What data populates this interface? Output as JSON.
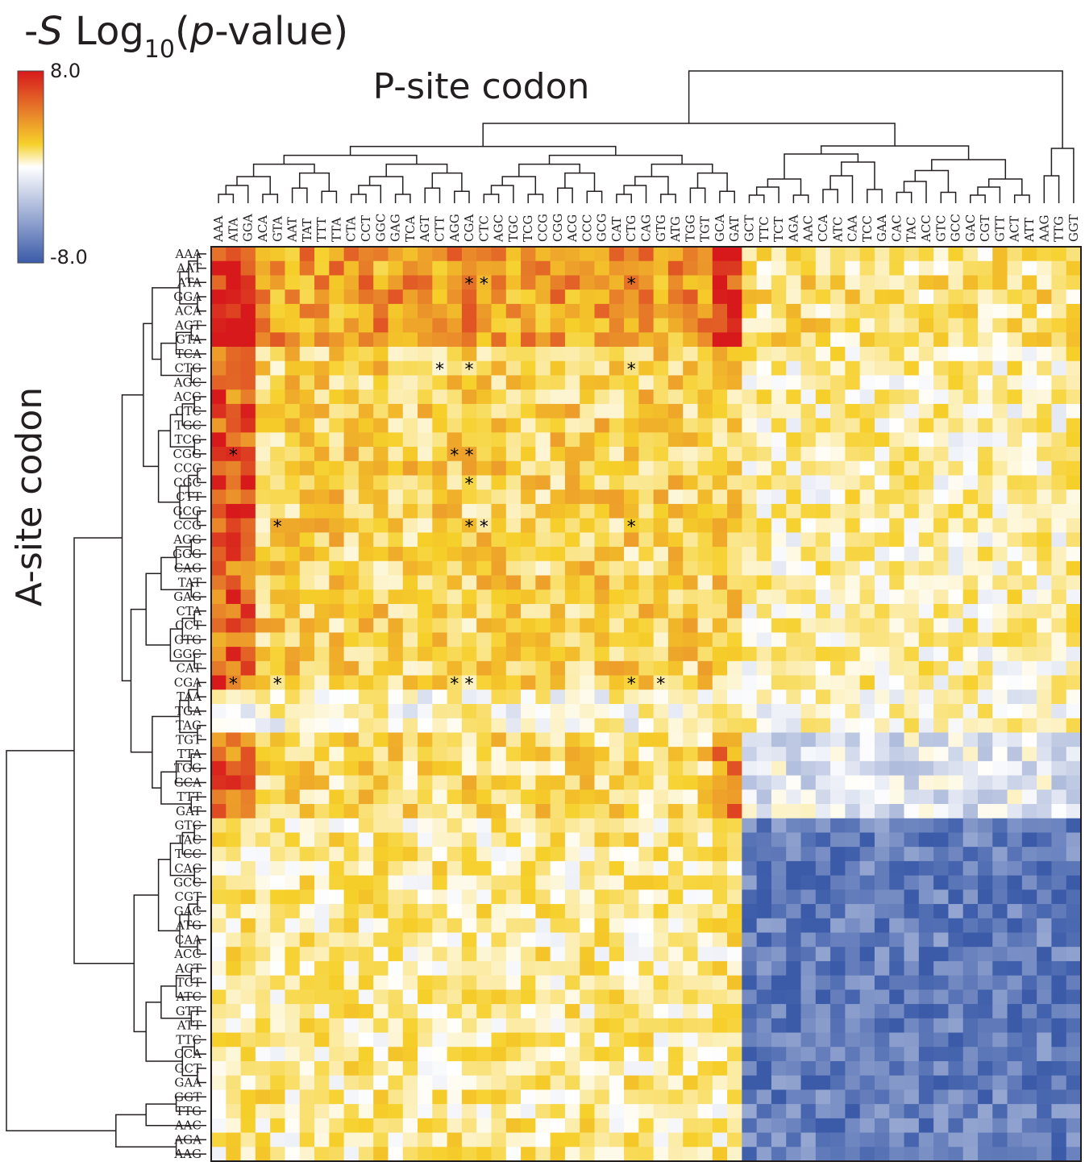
{
  "chart_data": {
    "type": "heatmap",
    "title": {
      "prefix": "-",
      "italic_s": "S",
      "log": " Log",
      "sub": "10",
      "open": "(",
      "italic_p": "p",
      "rest": "-value)"
    },
    "xlabel": "P-site codon",
    "ylabel": "A-site codon",
    "colorbar": {
      "max_label": "8.0",
      "min_label": "-8.0",
      "range": [
        -8,
        8
      ],
      "colors": {
        "high": "#d7191c",
        "orange": "#e8832a",
        "yellow": "#f6d02a",
        "mid": "#ffffff",
        "low": "#3b5ba9"
      }
    },
    "columns": [
      "AAA",
      "ATA",
      "GGA",
      "ACA",
      "GTA",
      "AAT",
      "TAT",
      "TTT",
      "TTA",
      "CTA",
      "CCT",
      "GGC",
      "GAG",
      "TCA",
      "AGT",
      "CTT",
      "AGG",
      "CGA",
      "CTC",
      "AGC",
      "TGC",
      "TCG",
      "CCG",
      "CGG",
      "ACG",
      "CCC",
      "GCG",
      "CAT",
      "CTG",
      "CAG",
      "GTG",
      "ATG",
      "TGG",
      "TGT",
      "GCA",
      "GAT",
      "GCT",
      "TTC",
      "TCT",
      "AGA",
      "AAC",
      "CCA",
      "ATC",
      "CAA",
      "TCC",
      "GAA",
      "CAC",
      "TAC",
      "ACC",
      "GTC",
      "GCC",
      "GAC",
      "CGT",
      "GTT",
      "ACT",
      "ATT",
      "AAG",
      "TTG",
      "GGT"
    ],
    "rows": [
      "AAA",
      "AAT",
      "ATA",
      "GGA",
      "ACA",
      "AGT",
      "GTA",
      "TCA",
      "CTG",
      "AGC",
      "ACG",
      "CTC",
      "TGC",
      "TCG",
      "CGG",
      "CCC",
      "CGC",
      "CTT",
      "GCG",
      "CCG",
      "AGG",
      "GGG",
      "CAG",
      "TAT",
      "GAG",
      "CTA",
      "CCT",
      "GTG",
      "GGC",
      "CAT",
      "CGA",
      "TAA",
      "TGA",
      "TAG",
      "TGT",
      "TTA",
      "TGG",
      "GCA",
      "TTT",
      "GAT",
      "GTC",
      "TAC",
      "TCC",
      "CAC",
      "GCC",
      "CGT",
      "GAC",
      "ATG",
      "CAA",
      "ACC",
      "ACT",
      "TCT",
      "ATC",
      "GTT",
      "ATT",
      "TTC",
      "CCA",
      "GCT",
      "GAA",
      "GGT",
      "TTG",
      "AAC",
      "AGA",
      "AAG"
    ],
    "row_groups": {
      "strong_positive": [
        0,
        6
      ],
      "positive": [
        7,
        30
      ],
      "stop": [
        31,
        33
      ],
      "mixed": [
        34,
        39
      ],
      "negative": [
        40,
        63
      ]
    },
    "column_groups": {
      "left": [
        0,
        35
      ],
      "right": [
        36,
        58
      ]
    },
    "significance_marker": "*",
    "significant_cells": [
      [
        "ATA",
        "CGA"
      ],
      [
        "ATA",
        "CTC"
      ],
      [
        "ATA",
        "CTG"
      ],
      [
        "CTG",
        "CTT"
      ],
      [
        "CTG",
        "CGA"
      ],
      [
        "CTG",
        "CTG"
      ],
      [
        "CGG",
        "ATA"
      ],
      [
        "CGG",
        "AGG"
      ],
      [
        "CGG",
        "CGA"
      ],
      [
        "CGC",
        "CGA"
      ],
      [
        "CCG",
        "GTA"
      ],
      [
        "CCG",
        "CGA"
      ],
      [
        "CCG",
        "CTC"
      ],
      [
        "CCG",
        "CTG"
      ],
      [
        "CGA",
        "ATA"
      ],
      [
        "CGA",
        "GTA"
      ],
      [
        "CGA",
        "AGG"
      ],
      [
        "CGA",
        "CGA"
      ],
      [
        "CGA",
        "CTG"
      ],
      [
        "CGA",
        "GTG"
      ]
    ]
  }
}
